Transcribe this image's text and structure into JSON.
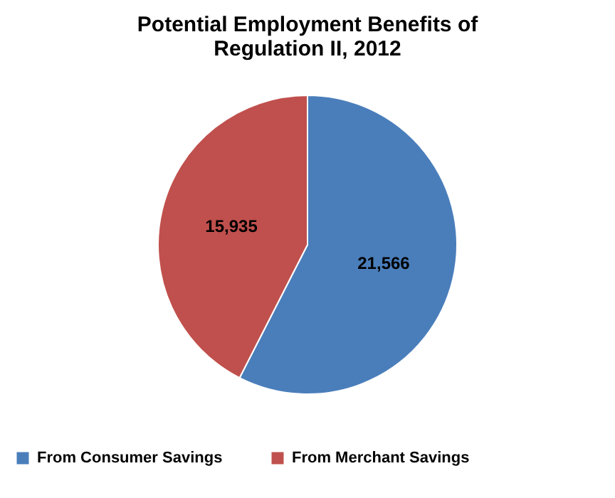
{
  "chart_data": {
    "type": "pie",
    "title": "Potential Employment Benefits of Regulation II, 2012",
    "categories": [
      "From Consumer Savings",
      "From Merchant Savings"
    ],
    "values": [
      21566,
      15935
    ],
    "colors": [
      "#4a7ebb",
      "#c0504d"
    ],
    "value_labels": [
      "21,566",
      "15,935"
    ],
    "legend": "bottom"
  }
}
